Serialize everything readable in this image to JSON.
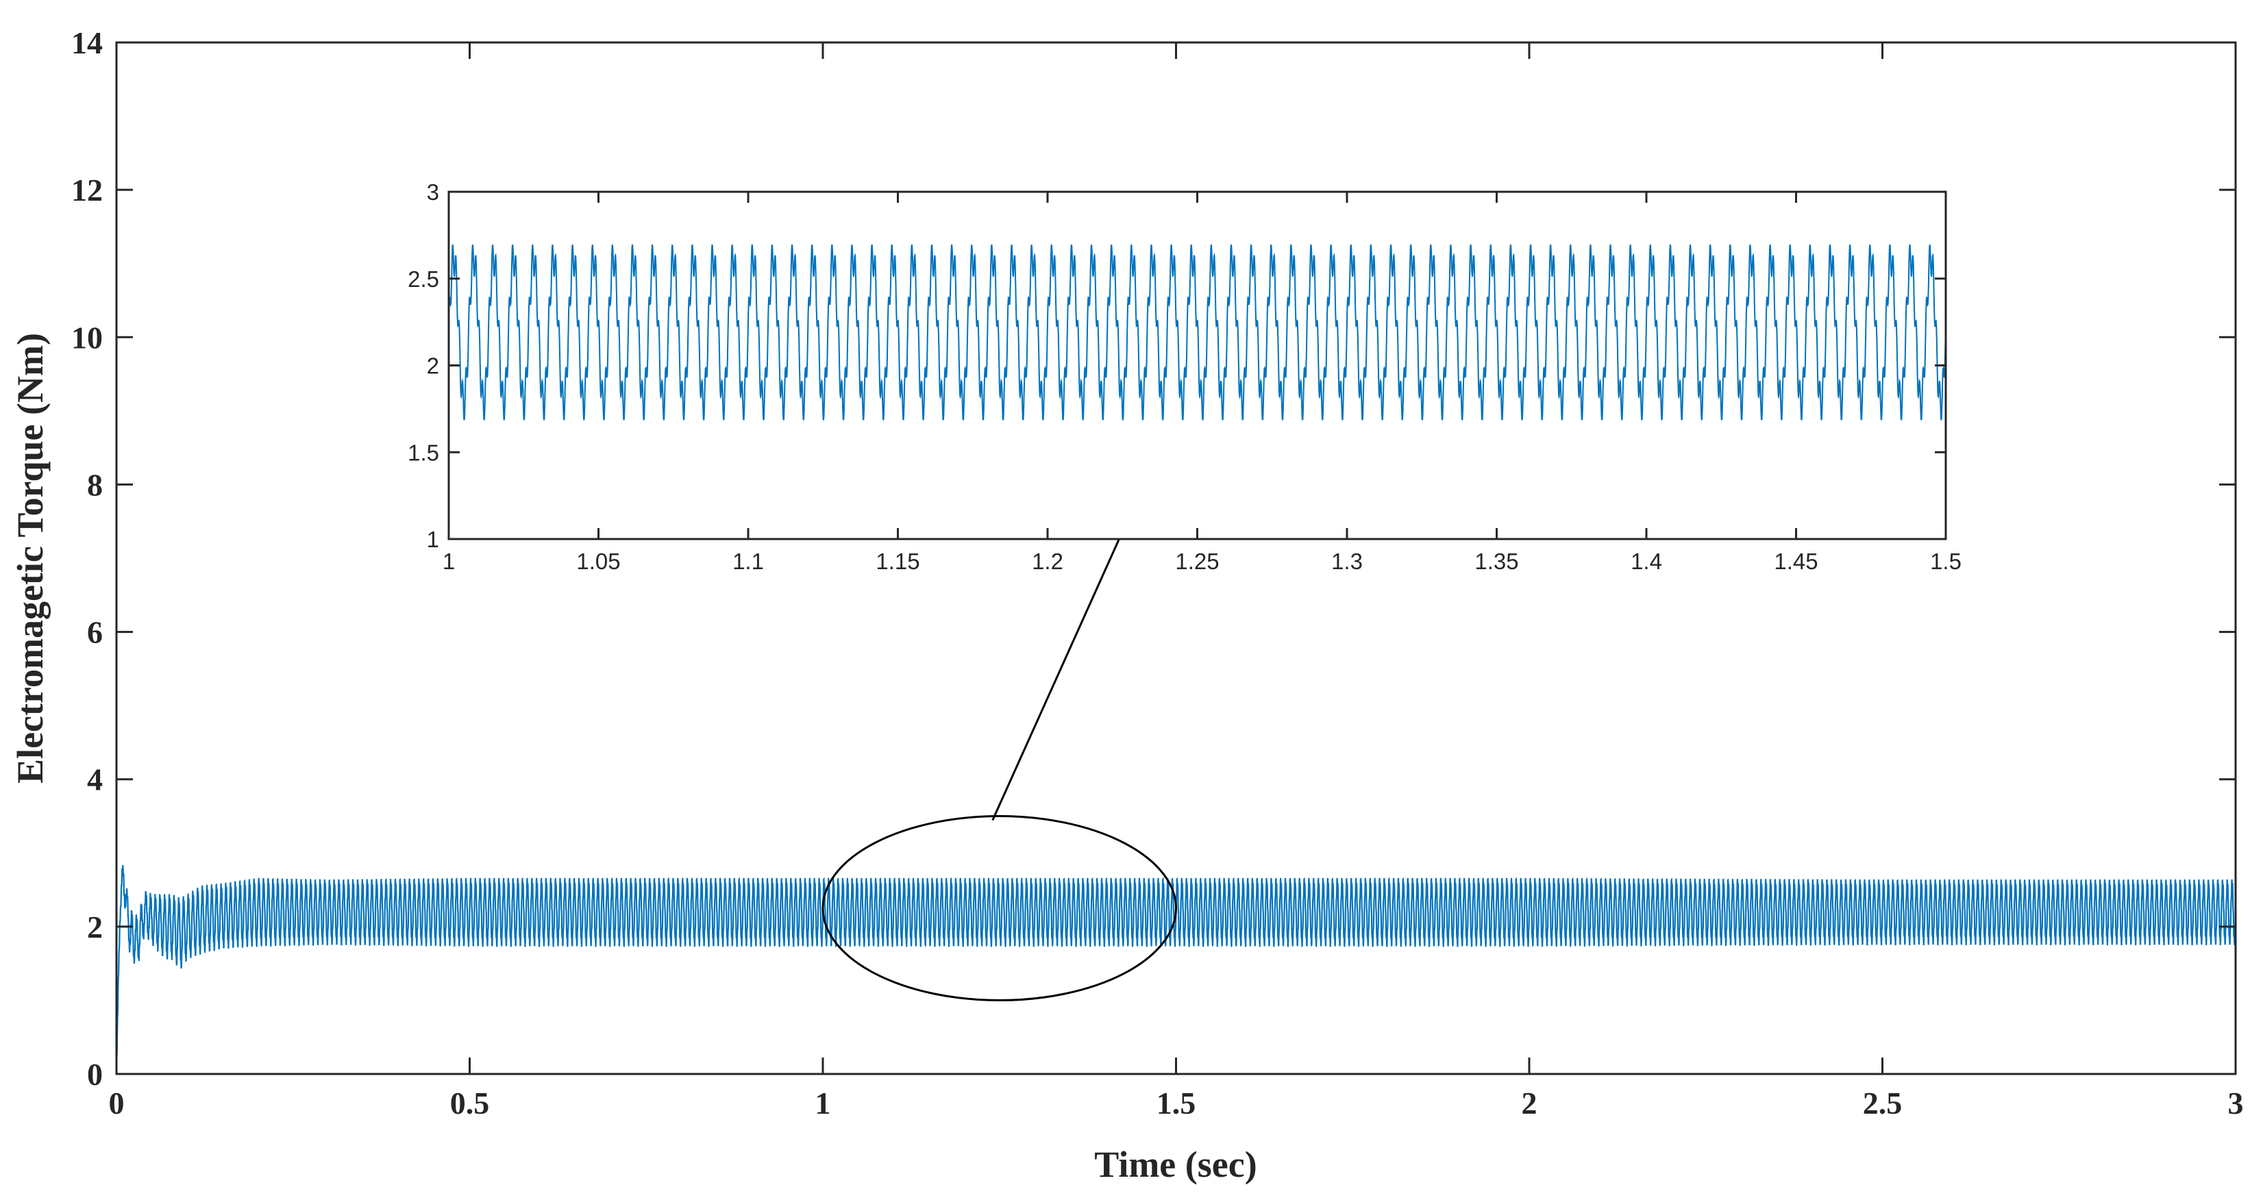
{
  "chart_data": [
    {
      "type": "line",
      "title": "",
      "xlabel": "Time (sec)",
      "ylabel": "Electromagetic Torque (Nm)",
      "xlim": [
        0,
        3
      ],
      "ylim": [
        0,
        14
      ],
      "grid": false,
      "legend": "none",
      "x_ticks": [
        "0",
        "0.5",
        "1",
        "1.5",
        "2",
        "2.5",
        "3"
      ],
      "y_ticks": [
        "0",
        "2",
        "4",
        "6",
        "8",
        "10",
        "12",
        "14"
      ],
      "line_color": "#0072BD",
      "series": [
        {
          "ripple_frequency_hz": 150,
          "x": [
            0,
            0.005,
            0.01,
            0.015,
            0.02,
            0.03,
            0.04,
            0.05,
            0.06,
            0.07,
            0.08,
            0.09,
            0.1,
            0.12,
            0.15,
            0.2,
            0.3,
            0.5,
            1.0,
            1.5,
            2.0,
            2.5,
            3.0
          ],
          "mean": [
            0,
            2.3,
            2.7,
            2.2,
            1.9,
            1.8,
            2.2,
            2.1,
            2.05,
            2.0,
            2.0,
            1.9,
            2.0,
            2.1,
            2.15,
            2.2,
            2.2,
            2.2,
            2.2,
            2.2,
            2.2,
            2.2,
            2.2
          ],
          "ripple_amplitude": [
            0,
            0.2,
            0.2,
            0.25,
            0.3,
            0.3,
            0.25,
            0.3,
            0.35,
            0.4,
            0.4,
            0.45,
            0.4,
            0.42,
            0.4,
            0.42,
            0.4,
            0.42,
            0.42,
            0.42,
            0.42,
            0.4,
            0.4
          ]
        }
      ]
    },
    {
      "type": "line",
      "title": "",
      "xlabel": "",
      "ylabel": "",
      "xlim": [
        1,
        1.5
      ],
      "ylim": [
        1,
        3
      ],
      "grid": false,
      "legend": "none",
      "x_ticks": [
        "1",
        "1.05",
        "1.1",
        "1.15",
        "1.2",
        "1.25",
        "1.3",
        "1.35",
        "1.4",
        "1.45",
        "1.5"
      ],
      "y_ticks": [
        "1",
        "1.5",
        "2",
        "2.5",
        "3"
      ],
      "line_color": "#0072BD",
      "series": [
        {
          "mean": 2.2,
          "ripple_amplitude": 0.42,
          "ripple_frequency_hz": 150,
          "secondary_ripple_amplitude": 0.1,
          "secondary_ripple_frequency_hz": 900,
          "min": 1.82,
          "max": 2.7
        }
      ]
    }
  ],
  "annotation": {
    "type": "ellipse-with-arrow",
    "region_x": [
      1.0,
      1.5
    ],
    "region_y": [
      1.0,
      3.5
    ],
    "arrow_target": "inset"
  }
}
